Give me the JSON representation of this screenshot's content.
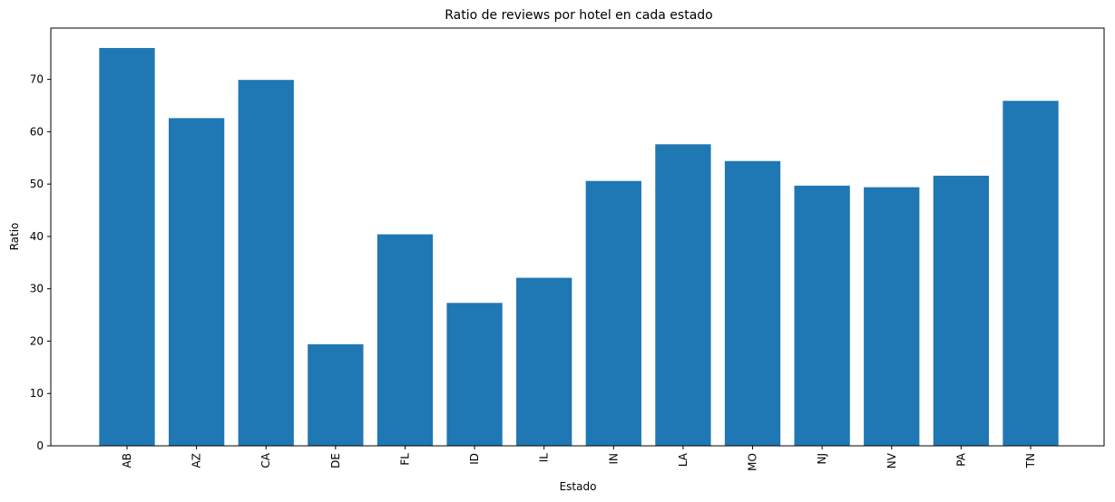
{
  "chart_data": {
    "type": "bar",
    "title": "Ratio de reviews por hotel en cada estado",
    "xlabel": "Estado",
    "ylabel": "Ratio",
    "categories": [
      "AB",
      "AZ",
      "CA",
      "DE",
      "FL",
      "ID",
      "IL",
      "IN",
      "LA",
      "MO",
      "NJ",
      "NV",
      "PA",
      "TN"
    ],
    "values": [
      76.0,
      62.6,
      69.9,
      19.4,
      40.4,
      27.3,
      32.1,
      50.6,
      57.6,
      54.4,
      49.7,
      49.4,
      51.6,
      65.9
    ],
    "ylim": [
      0,
      79.8
    ],
    "yticks": [
      0,
      10,
      20,
      30,
      40,
      50,
      60,
      70
    ],
    "bar_color": "#1f77b4",
    "grid": false,
    "legend": "none"
  }
}
